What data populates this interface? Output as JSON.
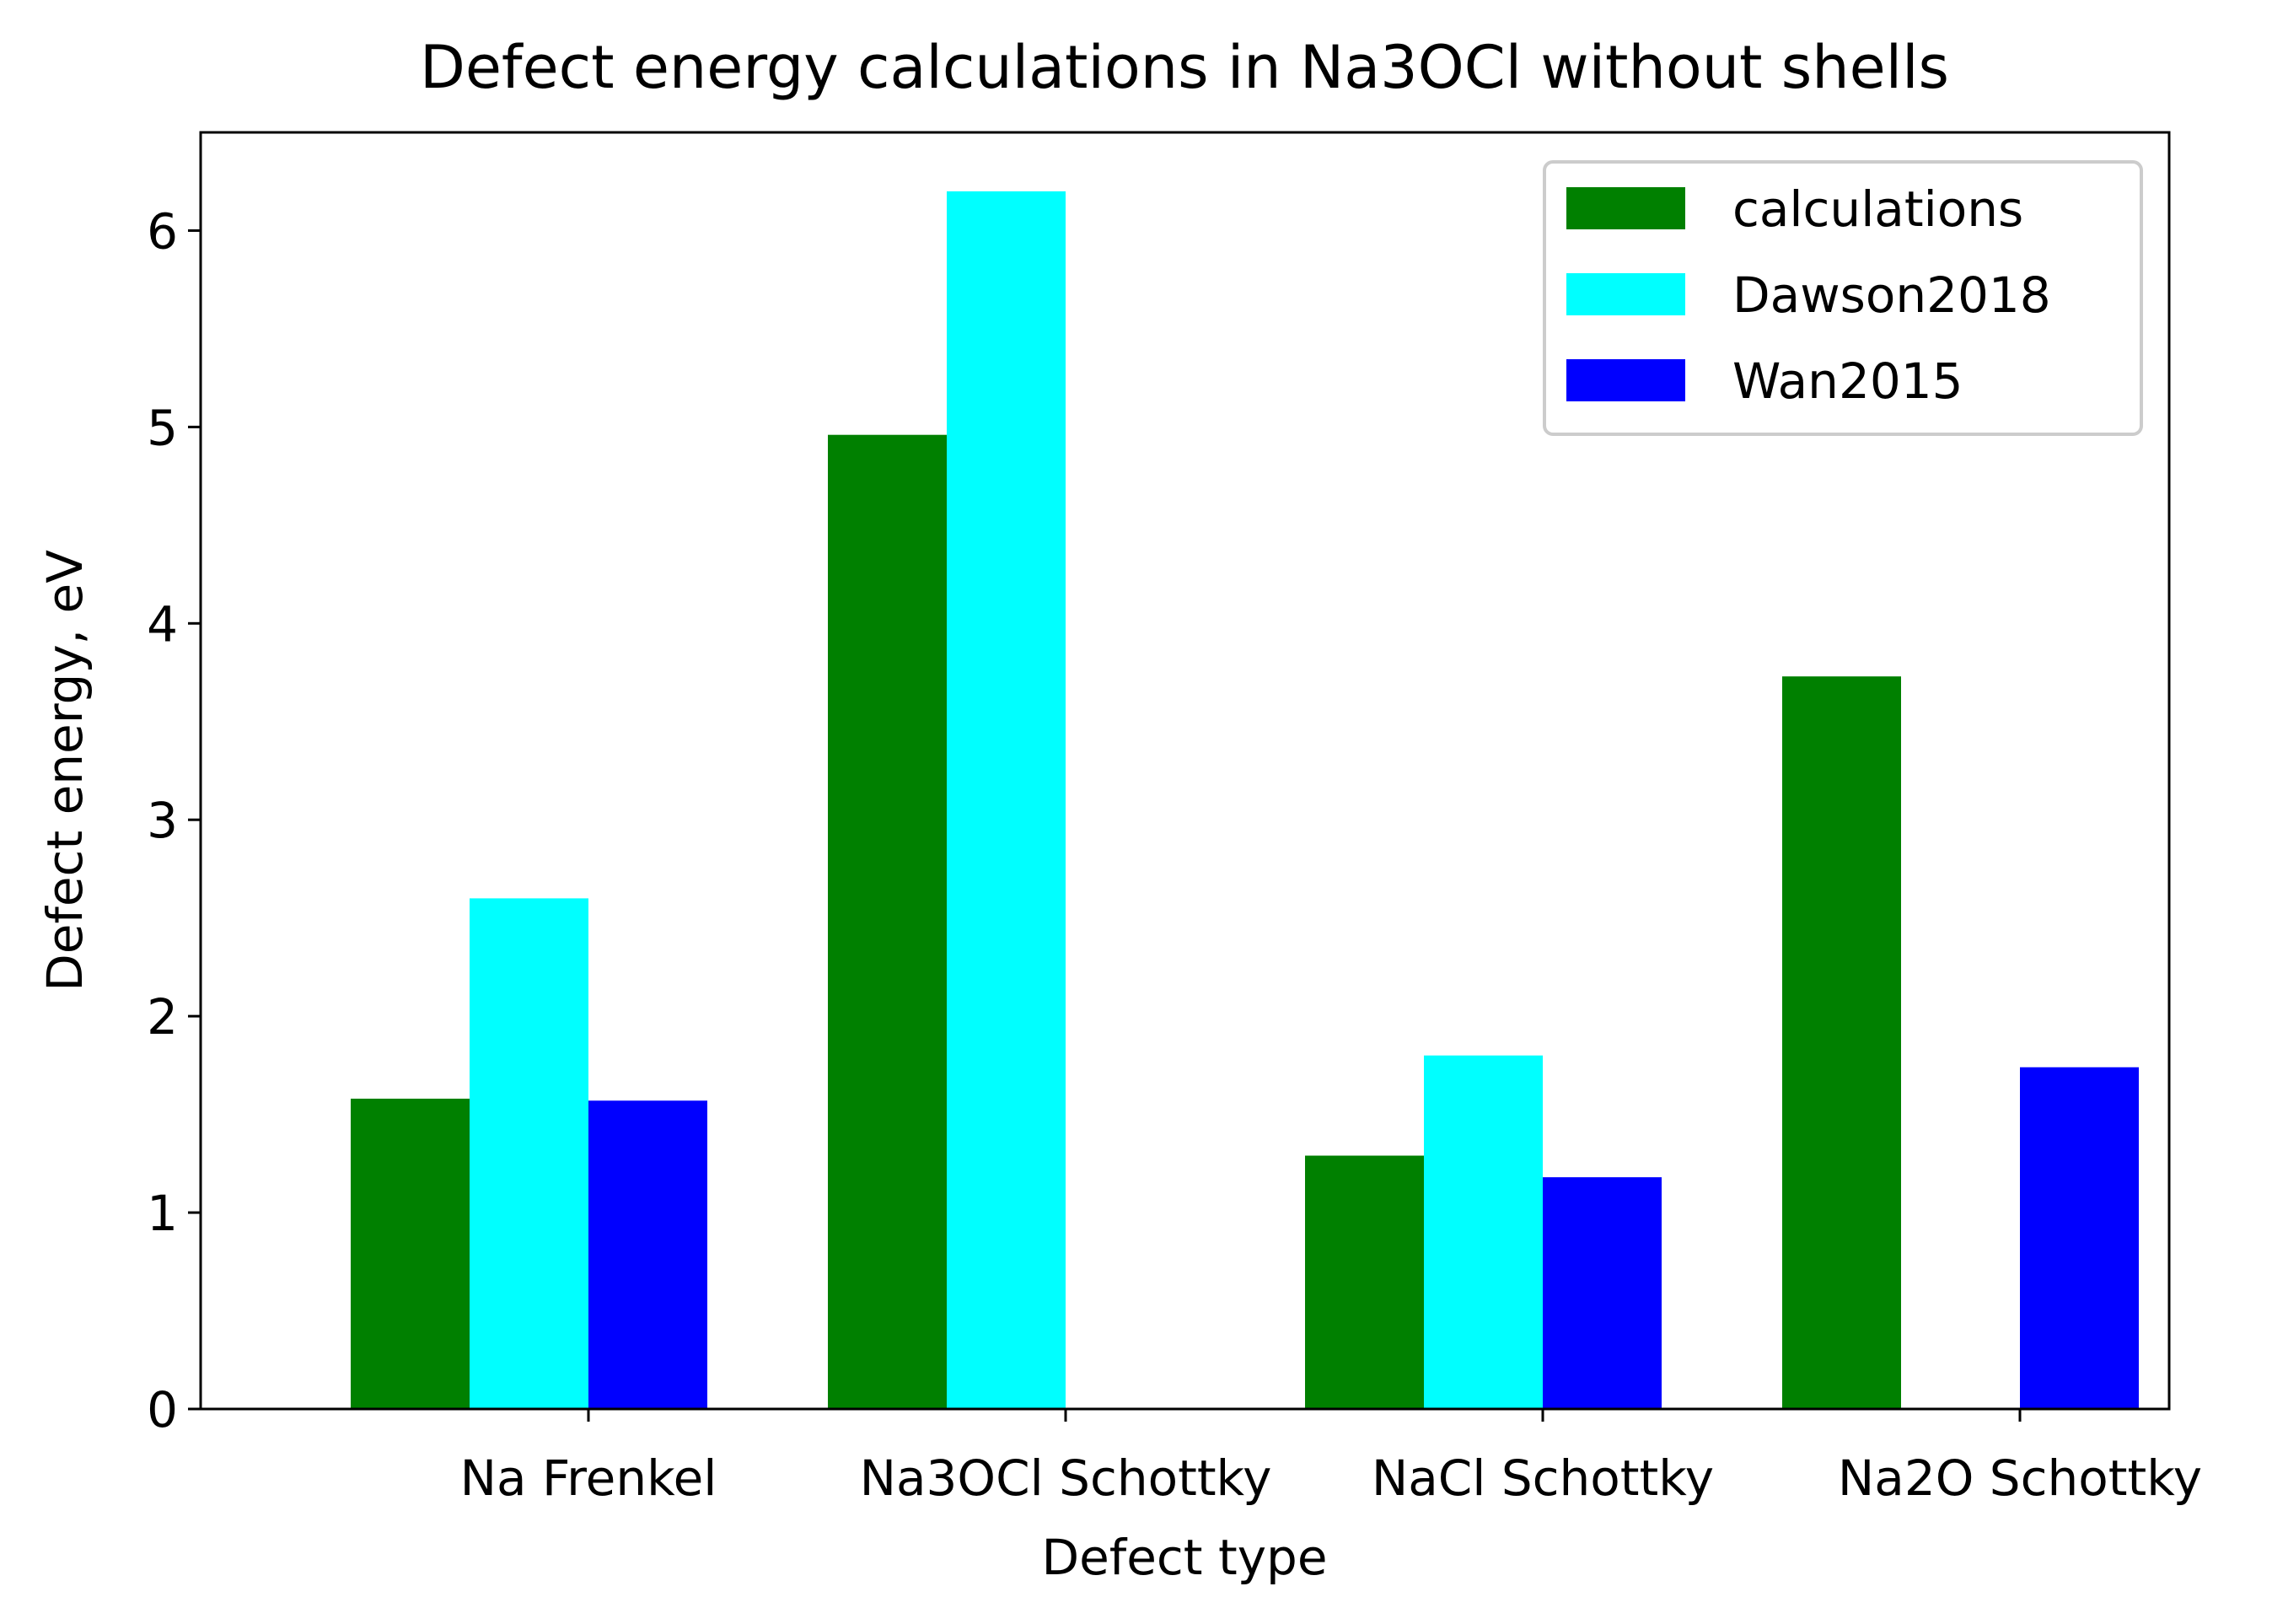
{
  "chart_data": {
    "type": "bar",
    "title": "Defect energy calculations in Na3OCl without shells",
    "xlabel": "Defect type",
    "ylabel": "Defect energy, eV",
    "categories": [
      "Na Frenkel",
      "Na3OCl Schottky",
      "NaCl Schottky",
      "Na2O Schottky"
    ],
    "ylim": [
      0,
      6.5
    ],
    "yticks": [
      "0",
      "1",
      "2",
      "3",
      "4",
      "5",
      "6"
    ],
    "grid": false,
    "legend_position": "top-right",
    "series": [
      {
        "name": "calculations",
        "color": "#008000",
        "values": [
          1.58,
          4.96,
          1.29,
          3.73
        ]
      },
      {
        "name": "Dawson2018",
        "color": "#00ffff",
        "values": [
          2.6,
          6.2,
          1.8,
          null
        ]
      },
      {
        "name": "Wan2015",
        "color": "#0000ff",
        "values": [
          1.57,
          null,
          1.18,
          1.74
        ]
      }
    ]
  }
}
